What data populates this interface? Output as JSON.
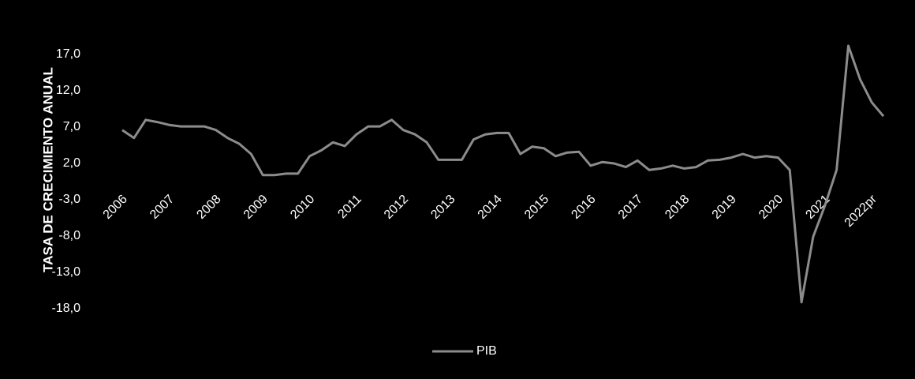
{
  "chart_data": {
    "type": "line",
    "y_axis_label": "TASA DE CRECIMIENTO ANUAL",
    "categories": [
      "2006",
      null,
      null,
      null,
      "2007",
      null,
      null,
      null,
      "2008",
      null,
      null,
      null,
      "2009",
      null,
      null,
      null,
      "2010",
      null,
      null,
      null,
      "2011",
      null,
      null,
      null,
      "2012",
      null,
      null,
      null,
      "2013",
      null,
      null,
      null,
      "2014",
      null,
      null,
      null,
      "2015",
      null,
      null,
      null,
      "2016",
      null,
      null,
      null,
      "2017",
      null,
      null,
      null,
      "2018",
      null,
      null,
      null,
      "2019",
      null,
      null,
      null,
      "2020",
      null,
      null,
      null,
      "2021",
      null,
      null,
      null,
      "2022pr",
      null
    ],
    "series": [
      {
        "name": "PIB",
        "color": "#8c8c8c",
        "values": [
          6.6,
          5.5,
          8.0,
          7.7,
          7.3,
          7.1,
          7.1,
          7.1,
          6.6,
          5.5,
          4.7,
          3.3,
          0.4,
          0.4,
          0.6,
          0.6,
          3.0,
          3.8,
          4.9,
          4.4,
          6.0,
          7.1,
          7.1,
          8.0,
          6.6,
          6.0,
          4.9,
          2.5,
          2.5,
          2.5,
          5.3,
          6.0,
          6.2,
          6.2,
          3.3,
          4.3,
          4.1,
          3.0,
          3.5,
          3.6,
          1.7,
          2.2,
          2.0,
          1.5,
          2.4,
          1.1,
          1.3,
          1.7,
          1.3,
          1.5,
          2.4,
          2.5,
          2.8,
          3.3,
          2.8,
          3.0,
          2.8,
          1.1,
          -17.1,
          -8.1,
          -3.8,
          1.1,
          18.2,
          13.6,
          10.4,
          8.5
        ]
      }
    ],
    "ylim": [
      -18,
      22
    ],
    "yticks": [
      {
        "value": -18,
        "label": "-18,0"
      },
      {
        "value": -13,
        "label": "-13,0"
      },
      {
        "value": -8,
        "label": "-8,0"
      },
      {
        "value": -3,
        "label": "-3,0"
      },
      {
        "value": 2,
        "label": "2,0"
      },
      {
        "value": 7,
        "label": "7,0"
      },
      {
        "value": 12,
        "label": "12,0"
      },
      {
        "value": 17,
        "label": "17,0"
      }
    ],
    "grid": false,
    "legend": "bottom"
  }
}
